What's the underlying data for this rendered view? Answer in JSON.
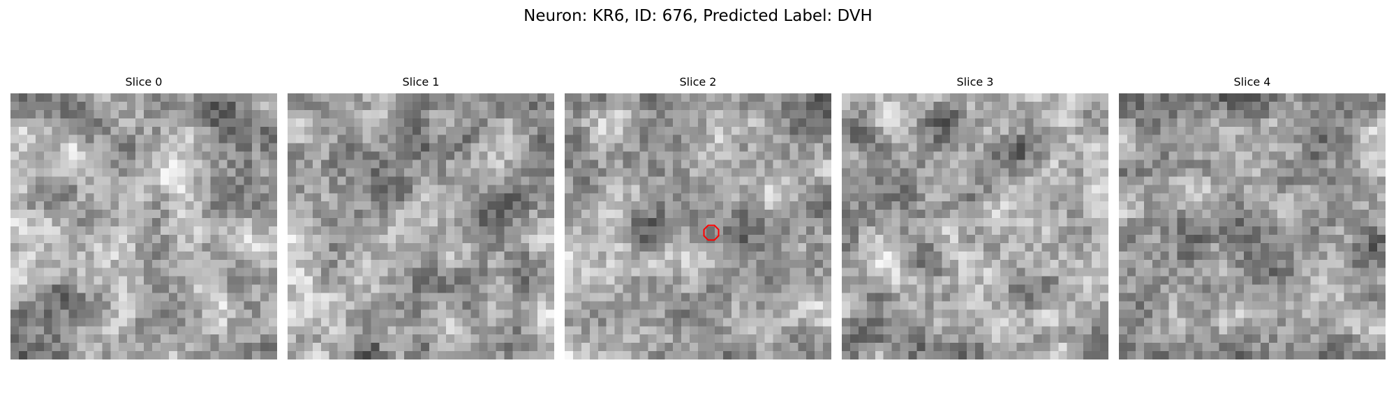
{
  "title": "Neuron: KR6, ID: 676, Predicted Label: DVH",
  "slices": [
    {
      "label": "Slice 0"
    },
    {
      "label": "Slice 1"
    },
    {
      "label": "Slice 2"
    },
    {
      "label": "Slice 3"
    },
    {
      "label": "Slice 4"
    }
  ],
  "marker": {
    "slice": 2,
    "shape": "octagon",
    "color": "#ff0000"
  },
  "colormap": "grayscale"
}
